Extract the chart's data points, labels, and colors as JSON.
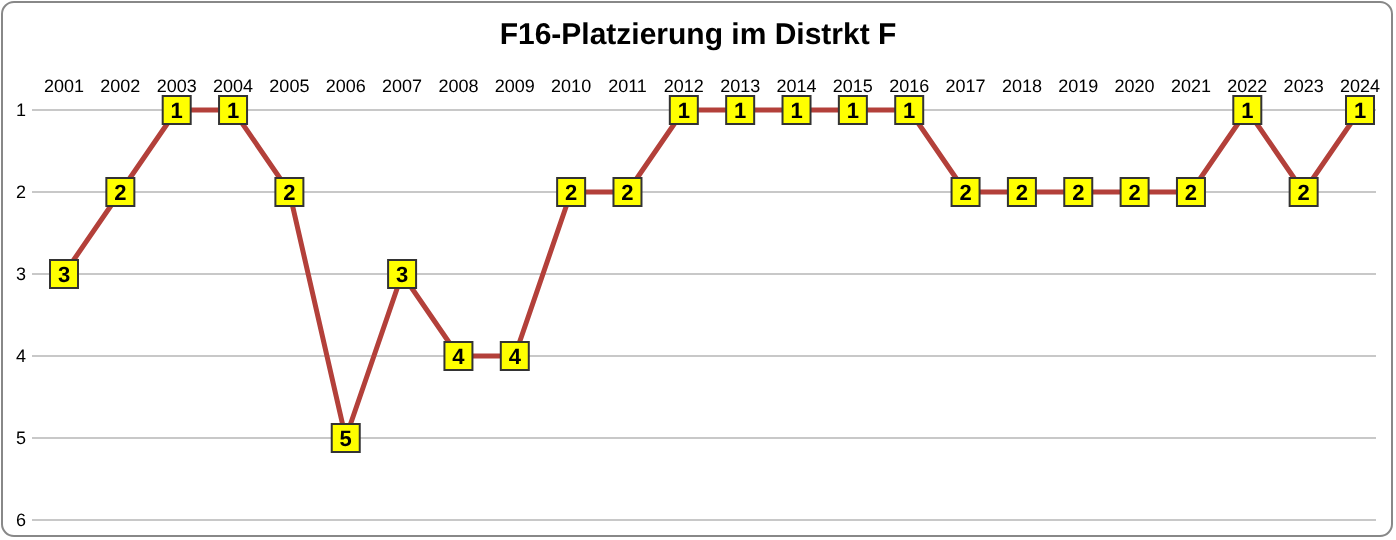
{
  "chart_data": {
    "type": "line",
    "title": "F16-Platzierung im Distrkt F",
    "categories": [
      "2001",
      "2002",
      "2003",
      "2004",
      "2005",
      "2006",
      "2007",
      "2008",
      "2009",
      "2010",
      "2011",
      "2012",
      "2013",
      "2014",
      "2015",
      "2016",
      "2017",
      "2018",
      "2019",
      "2020",
      "2021",
      "2022",
      "2023",
      "2024"
    ],
    "series": [
      {
        "color": "#b3403a",
        "values": [
          3,
          2,
          1,
          1,
          2,
          5,
          3,
          4,
          4,
          2,
          2,
          1,
          1,
          1,
          1,
          1,
          2,
          2,
          2,
          2,
          2,
          1,
          2,
          1
        ]
      }
    ],
    "ylim": [
      6,
      1
    ],
    "yticks": [
      1,
      2,
      3,
      4,
      5,
      6
    ],
    "grid": "y",
    "marker": "square",
    "data_labels": true,
    "line_style": "solid"
  }
}
